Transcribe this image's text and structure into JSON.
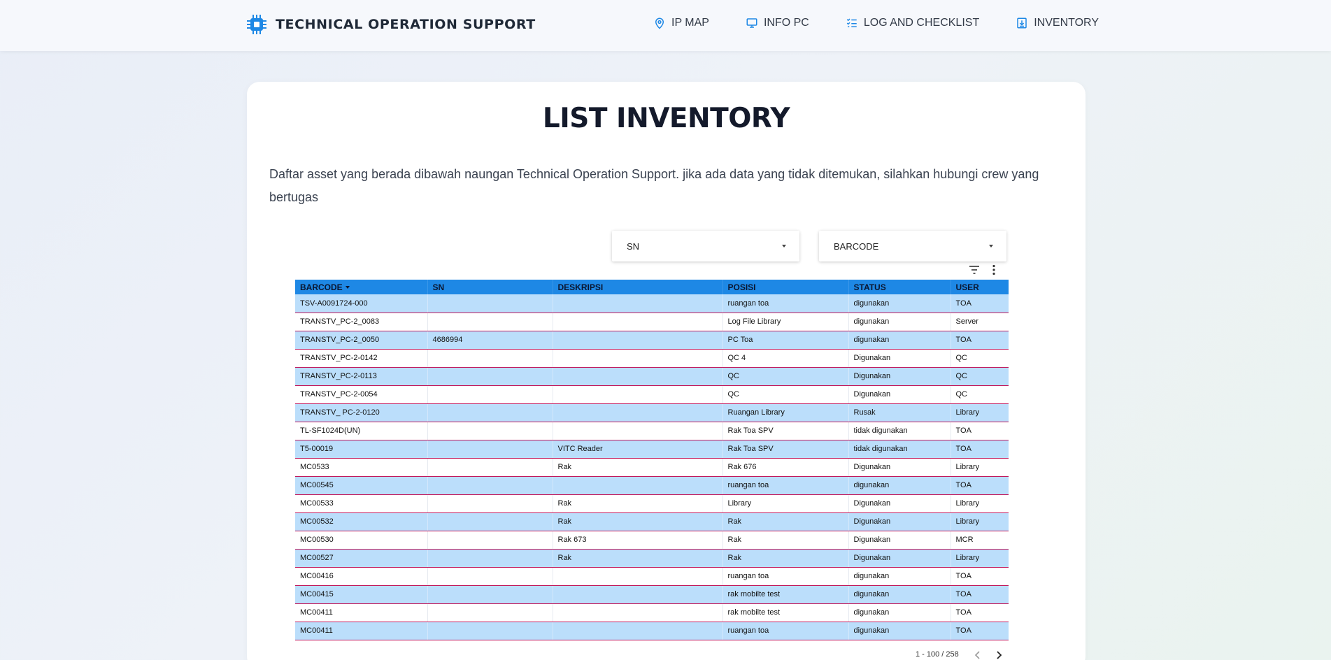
{
  "brand": {
    "title": "TECHNICAL OPERATION SUPPORT",
    "icon": "chip-icon",
    "accent": "#1e88e5"
  },
  "nav": [
    {
      "label": "IP MAP",
      "icon": "location-pin-icon"
    },
    {
      "label": "INFO PC",
      "icon": "monitor-icon"
    },
    {
      "label": "LOG AND CHECKLIST",
      "icon": "checklist-icon"
    },
    {
      "label": "INVENTORY",
      "icon": "download-box-icon"
    }
  ],
  "main": {
    "title": "LIST INVENTORY",
    "description": "Daftar asset yang berada dibawah naungan Technical Operation Support. jika ada data yang tidak ditemukan, silahkan hubungi crew yang bertugas"
  },
  "filters": {
    "sn_label": "SN",
    "barcode_label": "BARCODE"
  },
  "table": {
    "header_color": "#1e88e5",
    "row_alt_color": "#bbdefb",
    "columns": [
      "BARCODE",
      "SN",
      "DESKRIPSI",
      "POSISI",
      "STATUS",
      "USER"
    ],
    "rows": [
      [
        "TSV-A0091724-000",
        "",
        "",
        "ruangan toa",
        "digunakan",
        "TOA"
      ],
      [
        "TRANSTV_PC-2_0083",
        "",
        "",
        "Log File Library",
        "digunakan",
        "Server"
      ],
      [
        "TRANSTV_PC-2_0050",
        "4686994",
        "",
        "PC Toa",
        "digunakan",
        "TOA"
      ],
      [
        "TRANSTV_PC-2-0142",
        "",
        "",
        "QC 4",
        "Digunakan",
        "QC"
      ],
      [
        "TRANSTV_PC-2-0113",
        "",
        "",
        "QC",
        "Digunakan",
        "QC"
      ],
      [
        "TRANSTV_PC-2-0054",
        "",
        "",
        "QC",
        "Digunakan",
        "QC"
      ],
      [
        "TRANSTV_ PC-2-0120",
        "",
        "",
        "Ruangan Library",
        "Rusak",
        "Library"
      ],
      [
        "TL-SF1024D(UN)",
        "",
        "",
        "Rak Toa SPV",
        "tidak digunakan",
        "TOA"
      ],
      [
        "T5-00019",
        "",
        "VITC Reader",
        "Rak Toa SPV",
        "tidak digunakan",
        "TOA"
      ],
      [
        "MC0533",
        "",
        "Rak",
        "Rak 676",
        "Digunakan",
        "Library"
      ],
      [
        "MC00545",
        "",
        "",
        "ruangan toa",
        "digunakan",
        "TOA"
      ],
      [
        "MC00533",
        "",
        "Rak",
        "Library",
        "Digunakan",
        "Library"
      ],
      [
        "MC00532",
        "",
        "Rak",
        "Rak",
        "Digunakan",
        "Library"
      ],
      [
        "MC00530",
        "",
        "Rak 673",
        "Rak",
        "Digunakan",
        "MCR"
      ],
      [
        "MC00527",
        "",
        "Rak",
        "Rak",
        "Digunakan",
        "Library"
      ],
      [
        "MC00416",
        "",
        "",
        "ruangan toa",
        "digunakan",
        "TOA"
      ],
      [
        "MC00415",
        "",
        "",
        "rak mobilte test",
        "digunakan",
        "TOA"
      ],
      [
        "MC00411",
        "",
        "",
        "rak mobilte test",
        "digunakan",
        "TOA"
      ],
      [
        "MC00411",
        "",
        "",
        "ruangan toa",
        "digunakan",
        "TOA"
      ]
    ]
  },
  "pagination": {
    "range_text": "1 - 100 / 258"
  }
}
